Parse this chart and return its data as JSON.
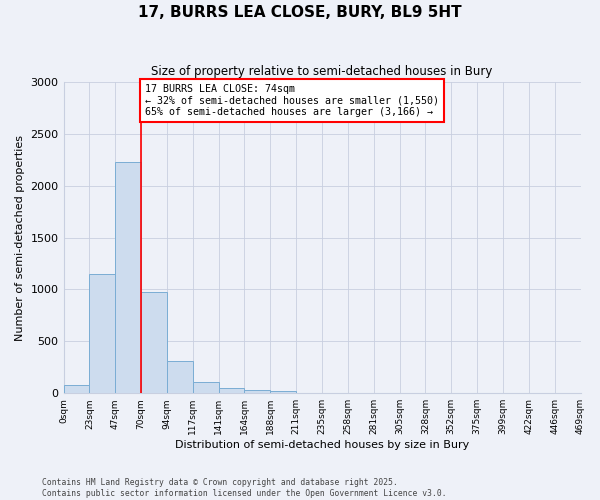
{
  "title": "17, BURRS LEA CLOSE, BURY, BL9 5HT",
  "subtitle": "Size of property relative to semi-detached houses in Bury",
  "xlabel": "Distribution of semi-detached houses by size in Bury",
  "ylabel": "Number of semi-detached properties",
  "bar_values": [
    75,
    1150,
    2230,
    975,
    310,
    105,
    50,
    30,
    25,
    0,
    0,
    0,
    0,
    0,
    0,
    0,
    0,
    0,
    0,
    0
  ],
  "bin_labels": [
    "0sqm",
    "23sqm",
    "47sqm",
    "70sqm",
    "94sqm",
    "117sqm",
    "141sqm",
    "164sqm",
    "188sqm",
    "211sqm",
    "235sqm",
    "258sqm",
    "281sqm",
    "305sqm",
    "328sqm",
    "352sqm",
    "375sqm",
    "399sqm",
    "422sqm",
    "446sqm",
    "469sqm"
  ],
  "bar_color": "#cddcee",
  "bar_edge_color": "#7aadd4",
  "ylim": [
    0,
    3000
  ],
  "yticks": [
    0,
    500,
    1000,
    1500,
    2000,
    2500,
    3000
  ],
  "red_line_x": 3,
  "annotation_title": "17 BURRS LEA CLOSE: 74sqm",
  "annotation_line1": "← 32% of semi-detached houses are smaller (1,550)",
  "annotation_line2": "65% of semi-detached houses are larger (3,166) →",
  "footer_line1": "Contains HM Land Registry data © Crown copyright and database right 2025.",
  "footer_line2": "Contains public sector information licensed under the Open Government Licence v3.0.",
  "background_color": "#eef1f8",
  "plot_bg_color": "#eef1f8"
}
